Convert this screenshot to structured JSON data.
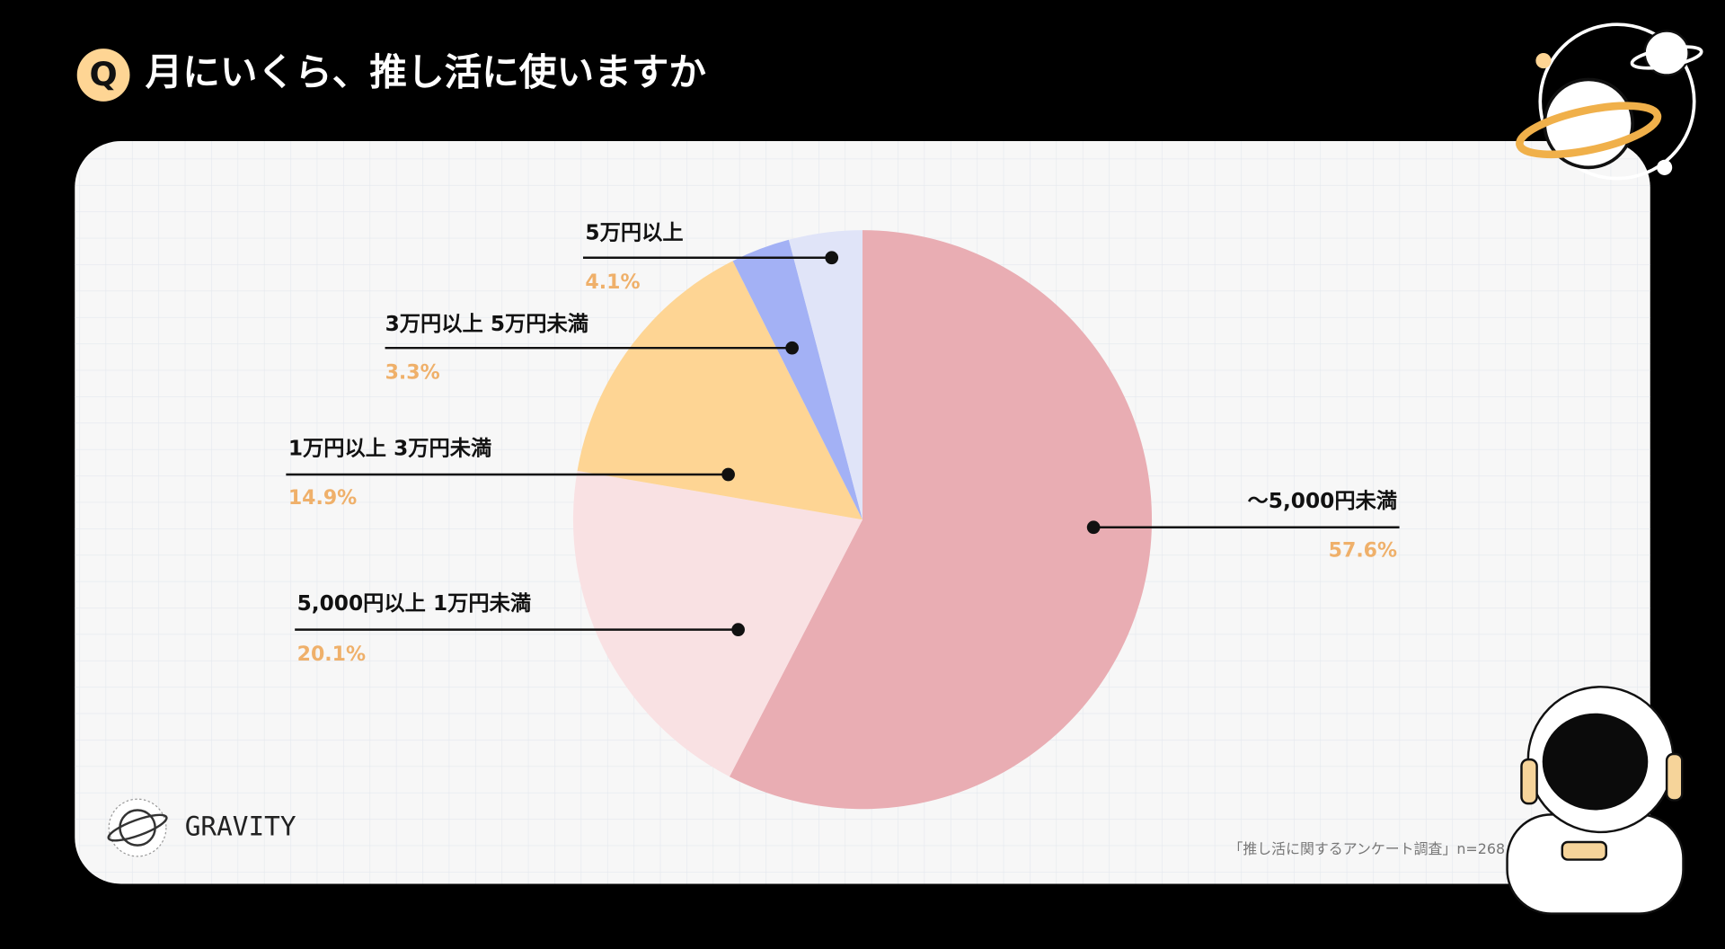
{
  "chart_data": {
    "type": "pie",
    "badge": "Q",
    "title": "月にいくら、推し活に使いますか",
    "categories": [
      "～5,000円未満",
      "5,000円以上 1万円未満",
      "1万円以上 3万円未満",
      "3万円以上 5万円未満",
      "5万円以上"
    ],
    "values": [
      57.6,
      20.1,
      14.9,
      3.3,
      4.1
    ],
    "value_labels": [
      "57.6%",
      "20.1%",
      "14.9%",
      "3.3%",
      "4.1%"
    ],
    "colors": [
      "#e9adb3",
      "#f9e1e3",
      "#fed594",
      "#a3b1f5",
      "#e0e4f8"
    ],
    "source": "「推し活に関するアンケート調査」n=268"
  },
  "brand": "GRAVITY"
}
